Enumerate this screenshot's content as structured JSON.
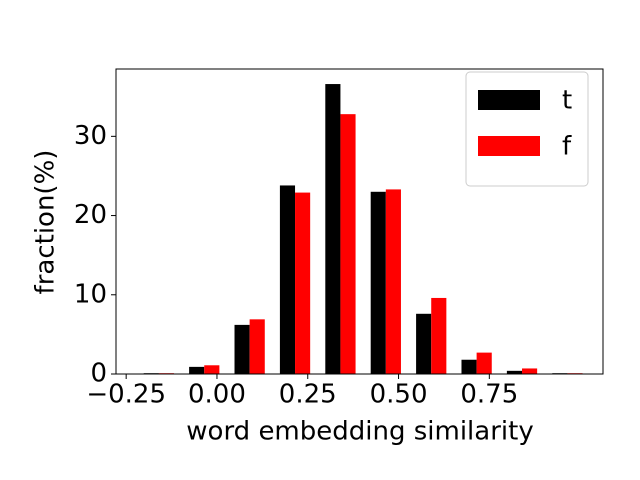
{
  "chart_data": {
    "type": "bar",
    "x_label": "word embedding similarity",
    "y_label": "fraction(%)",
    "x": [
      -0.16,
      -0.035,
      0.09,
      0.215,
      0.34,
      0.465,
      0.59,
      0.715,
      0.84,
      0.965
    ],
    "series": [
      {
        "name": "t",
        "color": "#000000",
        "values": [
          0.1,
          0.9,
          6.2,
          23.8,
          36.6,
          23.0,
          7.6,
          1.8,
          0.4,
          0.1
        ]
      },
      {
        "name": "f",
        "color": "#ff0000",
        "values": [
          0.1,
          1.1,
          6.9,
          22.9,
          32.8,
          23.3,
          9.6,
          2.7,
          0.7,
          0.1
        ]
      }
    ],
    "xlim": [
      -0.278,
      1.063
    ],
    "ylim": [
      0,
      38.5
    ],
    "xticks": [
      {
        "value": -0.25,
        "label": "−0.25"
      },
      {
        "value": 0,
        "label": "0.00"
      },
      0.25,
      {
        "value": 0.5,
        "label": "0.50"
      },
      0.75
    ],
    "yticks": [
      0,
      10,
      20,
      30
    ],
    "legend": "upper right"
  }
}
